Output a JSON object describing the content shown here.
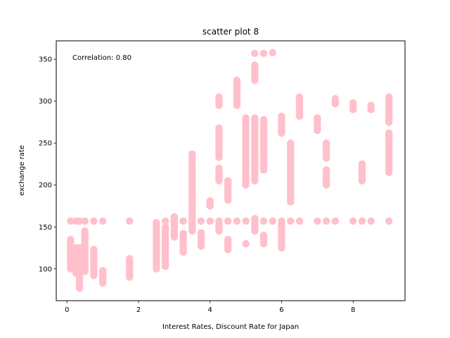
{
  "chart_data": {
    "type": "scatter",
    "title": "scatter plot 8",
    "xlabel": "Interest Rates, Discount Rate for Japan",
    "ylabel": "exchange rate",
    "annotation": "Correlation: 0.80",
    "xlim": [
      -0.3,
      9.45
    ],
    "ylim": [
      62,
      372
    ],
    "xticks": [
      0,
      2,
      4,
      6,
      8
    ],
    "yticks": [
      100,
      150,
      200,
      250,
      300,
      350
    ],
    "grid": false,
    "marker_color": "#ffc0cb",
    "columns": [
      {
        "x": 0.1,
        "ymin": 100,
        "ymax": 135
      },
      {
        "x": 0.25,
        "ymin": 95,
        "ymax": 125
      },
      {
        "x": 0.35,
        "ymin": 77,
        "ymax": 125
      },
      {
        "x": 0.5,
        "ymin": 97,
        "ymax": 145
      },
      {
        "x": 0.75,
        "ymin": 92,
        "ymax": 123
      },
      {
        "x": 1.0,
        "ymin": 83,
        "ymax": 98
      },
      {
        "x": 1.75,
        "ymin": 90,
        "ymax": 112
      },
      {
        "x": 2.5,
        "ymin": 100,
        "ymax": 155
      },
      {
        "x": 2.75,
        "ymin": 103,
        "ymax": 150
      },
      {
        "x": 3.0,
        "ymin": 138,
        "ymax": 162
      },
      {
        "x": 3.25,
        "ymin": 120,
        "ymax": 142
      },
      {
        "x": 3.5,
        "ymin": 145,
        "ymax": 237
      },
      {
        "x": 3.75,
        "ymin": 127,
        "ymax": 143
      },
      {
        "x": 4.0,
        "ymin": 175,
        "ymax": 181
      },
      {
        "x": 4.25,
        "ymin": 145,
        "ymax": 152
      },
      {
        "x": 4.25,
        "ymin": 205,
        "ymax": 220
      },
      {
        "x": 4.25,
        "ymin": 233,
        "ymax": 268
      },
      {
        "x": 4.25,
        "ymin": 295,
        "ymax": 305
      },
      {
        "x": 4.5,
        "ymin": 123,
        "ymax": 135
      },
      {
        "x": 4.5,
        "ymin": 182,
        "ymax": 205
      },
      {
        "x": 4.75,
        "ymin": 295,
        "ymax": 325
      },
      {
        "x": 5.0,
        "ymin": 200,
        "ymax": 280
      },
      {
        "x": 5.25,
        "ymin": 145,
        "ymax": 160
      },
      {
        "x": 5.25,
        "ymin": 205,
        "ymax": 280
      },
      {
        "x": 5.25,
        "ymin": 325,
        "ymax": 343
      },
      {
        "x": 5.5,
        "ymin": 130,
        "ymax": 140
      },
      {
        "x": 5.5,
        "ymin": 218,
        "ymax": 278
      },
      {
        "x": 6.0,
        "ymin": 125,
        "ymax": 155
      },
      {
        "x": 6.0,
        "ymin": 262,
        "ymax": 282
      },
      {
        "x": 6.25,
        "ymin": 180,
        "ymax": 250
      },
      {
        "x": 6.5,
        "ymin": 282,
        "ymax": 305
      },
      {
        "x": 7.0,
        "ymin": 265,
        "ymax": 280
      },
      {
        "x": 7.25,
        "ymin": 232,
        "ymax": 250
      },
      {
        "x": 7.25,
        "ymin": 200,
        "ymax": 218
      },
      {
        "x": 7.5,
        "ymin": 297,
        "ymax": 303
      },
      {
        "x": 8.0,
        "ymin": 290,
        "ymax": 298
      },
      {
        "x": 8.25,
        "ymin": 205,
        "ymax": 225
      },
      {
        "x": 8.5,
        "ymin": 290,
        "ymax": 295
      },
      {
        "x": 9.0,
        "ymin": 275,
        "ymax": 305
      },
      {
        "x": 9.0,
        "ymin": 215,
        "ymax": 262
      }
    ],
    "points": [
      {
        "x": 0.1,
        "y": 157
      },
      {
        "x": 0.25,
        "y": 157
      },
      {
        "x": 0.35,
        "y": 157
      },
      {
        "x": 0.5,
        "y": 157
      },
      {
        "x": 0.75,
        "y": 157
      },
      {
        "x": 1.0,
        "y": 157
      },
      {
        "x": 1.75,
        "y": 157
      },
      {
        "x": 2.75,
        "y": 157
      },
      {
        "x": 3.0,
        "y": 157
      },
      {
        "x": 3.25,
        "y": 157
      },
      {
        "x": 3.75,
        "y": 157
      },
      {
        "x": 4.0,
        "y": 157
      },
      {
        "x": 4.25,
        "y": 157
      },
      {
        "x": 4.5,
        "y": 157
      },
      {
        "x": 4.75,
        "y": 157
      },
      {
        "x": 5.0,
        "y": 157
      },
      {
        "x": 5.5,
        "y": 157
      },
      {
        "x": 5.75,
        "y": 157
      },
      {
        "x": 6.0,
        "y": 157
      },
      {
        "x": 6.25,
        "y": 157
      },
      {
        "x": 6.5,
        "y": 157
      },
      {
        "x": 7.0,
        "y": 157
      },
      {
        "x": 7.25,
        "y": 157
      },
      {
        "x": 7.5,
        "y": 157
      },
      {
        "x": 8.0,
        "y": 157
      },
      {
        "x": 8.25,
        "y": 157
      },
      {
        "x": 8.5,
        "y": 157
      },
      {
        "x": 9.0,
        "y": 157
      },
      {
        "x": 5.0,
        "y": 130
      },
      {
        "x": 5.25,
        "y": 357
      },
      {
        "x": 5.5,
        "y": 357
      },
      {
        "x": 5.75,
        "y": 358
      },
      {
        "x": 4.75,
        "y": 310
      },
      {
        "x": 5.0,
        "y": 225
      },
      {
        "x": 6.0,
        "y": 140
      }
    ]
  }
}
